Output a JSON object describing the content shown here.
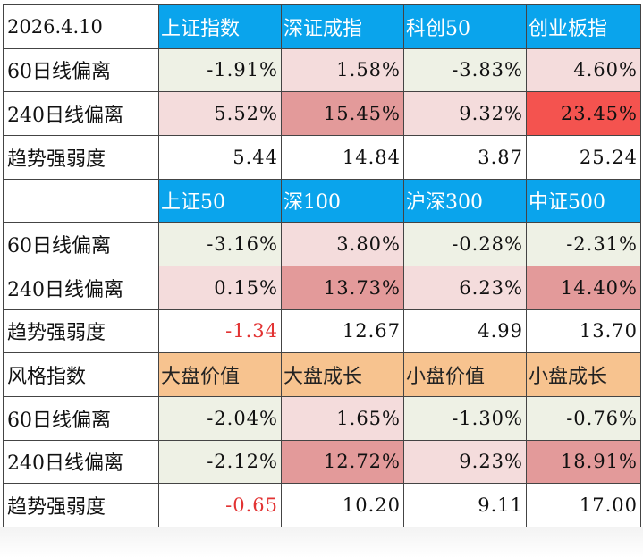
{
  "colors": {
    "header_blue": "#0aa4ec",
    "header_orange": "#f7c38f",
    "neutral": "#eef1e5",
    "pink_light": "#f4dcdc",
    "pink_mid": "#e39a9a",
    "red_strong": "#f4534f",
    "white": "#ffffff",
    "negative_text": "#e23333"
  },
  "sections": [
    {
      "corner": "2026.4.10",
      "corner_style": "date",
      "header_style": "blue",
      "headers": [
        "上证指数",
        "深证成指",
        "科创50",
        "创业板指"
      ],
      "rows": [
        {
          "label": "60日线偏离",
          "values": [
            "-1.91%",
            "1.58%",
            "-3.83%",
            "4.60%"
          ],
          "fills": [
            "neutral",
            "pink_light",
            "neutral",
            "pink_light"
          ],
          "neg": [
            false,
            false,
            false,
            false
          ]
        },
        {
          "label": "240日线偏离",
          "values": [
            "5.52%",
            "15.45%",
            "9.32%",
            "23.45%"
          ],
          "fills": [
            "pink_light",
            "pink_mid",
            "pink_light",
            "red_strong"
          ],
          "neg": [
            false,
            false,
            false,
            false
          ]
        },
        {
          "label": "趋势强弱度",
          "values": [
            "5.44",
            "14.84",
            "3.87",
            "25.24"
          ],
          "fills": [
            "white",
            "white",
            "white",
            "white"
          ],
          "neg": [
            false,
            false,
            false,
            false
          ]
        }
      ]
    },
    {
      "corner": "",
      "corner_style": "blank",
      "header_style": "blue",
      "headers": [
        "上证50",
        "深100",
        "沪深300",
        "中证500"
      ],
      "rows": [
        {
          "label": "60日线偏离",
          "values": [
            "-3.16%",
            "3.80%",
            "-0.28%",
            "-2.31%"
          ],
          "fills": [
            "neutral",
            "pink_light",
            "neutral",
            "neutral"
          ],
          "neg": [
            false,
            false,
            false,
            false
          ]
        },
        {
          "label": "240日线偏离",
          "values": [
            "0.15%",
            "13.73%",
            "6.23%",
            "14.40%"
          ],
          "fills": [
            "pink_light",
            "pink_mid",
            "pink_light",
            "pink_mid"
          ],
          "neg": [
            false,
            false,
            false,
            false
          ]
        },
        {
          "label": "趋势强弱度",
          "values": [
            "-1.34",
            "12.67",
            "4.99",
            "13.70"
          ],
          "fills": [
            "white",
            "white",
            "white",
            "white"
          ],
          "neg": [
            true,
            false,
            false,
            false
          ]
        }
      ]
    },
    {
      "corner": "风格指数",
      "corner_style": "label",
      "header_style": "orange",
      "headers": [
        "大盘价值",
        "大盘成长",
        "小盘价值",
        "小盘成长"
      ],
      "rows": [
        {
          "label": "60日线偏离",
          "values": [
            "-2.04%",
            "1.65%",
            "-1.30%",
            "-0.76%"
          ],
          "fills": [
            "neutral",
            "pink_light",
            "neutral",
            "neutral"
          ],
          "neg": [
            false,
            false,
            false,
            false
          ]
        },
        {
          "label": "240日线偏离",
          "values": [
            "-2.12%",
            "12.72%",
            "9.23%",
            "18.91%"
          ],
          "fills": [
            "neutral",
            "pink_mid",
            "pink_light",
            "pink_mid"
          ],
          "neg": [
            false,
            false,
            false,
            false
          ]
        },
        {
          "label": "趋势强弱度",
          "values": [
            "-0.65",
            "10.20",
            "9.11",
            "17.00"
          ],
          "fills": [
            "white",
            "white",
            "white",
            "white"
          ],
          "neg": [
            true,
            false,
            false,
            false
          ]
        }
      ]
    }
  ]
}
